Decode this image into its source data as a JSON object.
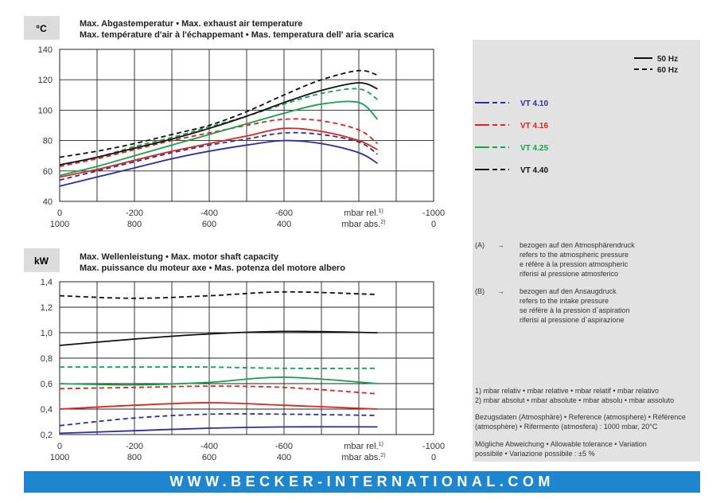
{
  "footer": {
    "url": "WWW.BECKER-INTERNATIONAL.COM"
  },
  "legend": {
    "freq_50": "50 Hz",
    "freq_60": "60 Hz",
    "models": [
      {
        "name": "VT 4.10",
        "color": "#2b2f9c"
      },
      {
        "name": "VT 4.16",
        "color": "#e0231c"
      },
      {
        "name": "VT 4.25",
        "color": "#12a34b"
      },
      {
        "name": "VT 4.40",
        "color": "#111111"
      }
    ]
  },
  "notes": {
    "A_label": "(A)",
    "A_arrow": "→",
    "A_lines": [
      "bezogen auf den Atmosphärendruck",
      "refers to the atmospheric pressure",
      "e réfère à la pression atmospheric",
      "riferisi al pressione atmosferico"
    ],
    "B_label": "(B)",
    "B_arrow": "→",
    "B_lines": [
      "bezogen auf den Ansaugdruck",
      "refers to the intake pressure",
      "se réfère à la pression d`aspiration",
      "riferisi al pressione d`aspirazione"
    ],
    "fn1": "1) mbar relativ • mbar relative • mbar relatif • mbar relativo",
    "fn2": "2) mbar absolut • mbar absolute • mbar absolu • mbar assoluto",
    "ref1": "Bezugsdaten (Atmosphäre) • Reference (atmosphere) • Référence",
    "ref2": "(atmosphère) • Rifermento (atmosfera) :  1000 mbar, 20°C",
    "tol1": "Mögliche Abweichung • Allowable tolerance • Variation",
    "tol2": "possibile • Variazione possibile :  ±5 %"
  },
  "chart_data": [
    {
      "type": "line",
      "unit": "°C",
      "title": [
        "Max. Abgastemperatur  •  Max. exhaust air temperature",
        "Max. température d'air à l'échappemant  •  Mas. temperatura dell' aria scarica"
      ],
      "xlabel_rel": "mbar rel.",
      "xlabel_rel_sup": "1)",
      "xlabel_abs": "mbar abs.",
      "xlabel_abs_sup": "2)",
      "xlim": [
        0,
        -1000
      ],
      "x_ticks_rel": [
        "0",
        "-200",
        "-400",
        "-600",
        "",
        "-1000"
      ],
      "x_ticks_abs": [
        "1000",
        "800",
        "600",
        "400",
        "",
        "0"
      ],
      "ylim": [
        40,
        140
      ],
      "y_ticks": [
        "40",
        "60",
        "80",
        "100",
        "120",
        "140"
      ],
      "grid": true,
      "series": [
        {
          "name": "VT 4.10",
          "color": "#2b2f9c",
          "dash": false,
          "x": [
            0,
            -100,
            -200,
            -300,
            -400,
            -500,
            -600,
            -700,
            -800,
            -850
          ],
          "y": [
            50,
            56,
            62,
            68,
            73,
            77,
            80,
            78,
            72,
            65
          ]
        },
        {
          "name": "VT 4.10",
          "color": "#2b2f9c",
          "dash": true,
          "x": [
            0,
            -100,
            -200,
            -300,
            -400,
            -500,
            -600,
            -700,
            -800,
            -850
          ],
          "y": [
            54,
            60,
            66,
            72,
            77,
            81,
            85,
            84,
            79,
            71
          ]
        },
        {
          "name": "VT 4.16",
          "color": "#e0231c",
          "dash": false,
          "x": [
            0,
            -100,
            -200,
            -300,
            -400,
            -500,
            -600,
            -700,
            -800,
            -850
          ],
          "y": [
            56,
            61,
            67,
            73,
            78,
            83,
            88,
            86,
            80,
            74
          ]
        },
        {
          "name": "VT 4.16",
          "color": "#e0231c",
          "dash": true,
          "x": [
            0,
            -100,
            -200,
            -300,
            -400,
            -500,
            -600,
            -700,
            -800,
            -850
          ],
          "y": [
            63,
            68,
            74,
            80,
            85,
            90,
            94,
            93,
            87,
            78
          ]
        },
        {
          "name": "VT 4.25",
          "color": "#12a34b",
          "dash": false,
          "x": [
            0,
            -100,
            -200,
            -300,
            -400,
            -500,
            -600,
            -700,
            -800,
            -850
          ],
          "y": [
            57,
            63,
            70,
            77,
            84,
            91,
            98,
            104,
            105,
            94
          ]
        },
        {
          "name": "VT 4.25",
          "color": "#12a34b",
          "dash": true,
          "x": [
            0,
            -100,
            -200,
            -300,
            -400,
            -500,
            -600,
            -700,
            -800,
            -850
          ],
          "y": [
            64,
            69,
            76,
            82,
            89,
            96,
            104,
            111,
            114,
            107
          ]
        },
        {
          "name": "VT 4.40",
          "color": "#111111",
          "dash": false,
          "x": [
            0,
            -100,
            -200,
            -300,
            -400,
            -500,
            -600,
            -700,
            -800,
            -850
          ],
          "y": [
            64,
            69,
            75,
            81,
            88,
            96,
            105,
            113,
            118,
            114
          ]
        },
        {
          "name": "VT 4.40",
          "color": "#111111",
          "dash": true,
          "x": [
            0,
            -100,
            -200,
            -300,
            -400,
            -500,
            -600,
            -700,
            -800,
            -850
          ],
          "y": [
            69,
            73,
            78,
            84,
            90,
            99,
            110,
            120,
            126,
            123
          ]
        }
      ]
    },
    {
      "type": "line",
      "unit": "kW",
      "title": [
        "Max. Wellenleistung  •  Max. motor shaft capacity",
        "Max. puissance du moteur axe  •  Mas. potenza del motore albero"
      ],
      "xlabel_rel": "mbar rel.",
      "xlabel_rel_sup": "1)",
      "xlabel_abs": "mbar abs.",
      "xlabel_abs_sup": "2)",
      "xlim": [
        0,
        -1000
      ],
      "x_ticks_rel": [
        "0",
        "-200",
        "-400",
        "-600",
        "",
        "-1000"
      ],
      "x_ticks_abs": [
        "1000",
        "800",
        "600",
        "400",
        "",
        "0"
      ],
      "ylim": [
        0.2,
        1.4
      ],
      "y_ticks": [
        "0,2",
        "0,4",
        "0,6",
        "0,8",
        "1,0",
        "1,2",
        "1,4"
      ],
      "grid": true,
      "series": [
        {
          "name": "VT 4.10",
          "color": "#2b2f9c",
          "dash": false,
          "x": [
            0,
            -200,
            -400,
            -600,
            -850
          ],
          "y": [
            0.21,
            0.23,
            0.25,
            0.26,
            0.26
          ]
        },
        {
          "name": "VT 4.10",
          "color": "#2b2f9c",
          "dash": true,
          "x": [
            0,
            -200,
            -400,
            -600,
            -850
          ],
          "y": [
            0.27,
            0.33,
            0.36,
            0.36,
            0.35
          ]
        },
        {
          "name": "VT 4.16",
          "color": "#e0231c",
          "dash": false,
          "x": [
            0,
            -200,
            -400,
            -600,
            -850
          ],
          "y": [
            0.4,
            0.43,
            0.45,
            0.43,
            0.4
          ]
        },
        {
          "name": "VT 4.16",
          "color": "#e0231c",
          "dash": true,
          "x": [
            0,
            -200,
            -400,
            -600,
            -850
          ],
          "y": [
            0.56,
            0.57,
            0.58,
            0.57,
            0.52
          ]
        },
        {
          "name": "VT 4.25",
          "color": "#12a34b",
          "dash": false,
          "x": [
            0,
            -200,
            -400,
            -600,
            -850
          ],
          "y": [
            0.6,
            0.59,
            0.61,
            0.65,
            0.6
          ]
        },
        {
          "name": "VT 4.25",
          "color": "#12a34b",
          "dash": true,
          "x": [
            0,
            -200,
            -400,
            -600,
            -850
          ],
          "y": [
            0.73,
            0.73,
            0.73,
            0.72,
            0.72
          ]
        },
        {
          "name": "VT 4.40",
          "color": "#111111",
          "dash": false,
          "x": [
            0,
            -200,
            -400,
            -600,
            -850
          ],
          "y": [
            0.9,
            0.95,
            0.99,
            1.01,
            1.0
          ]
        },
        {
          "name": "VT 4.40",
          "color": "#111111",
          "dash": true,
          "x": [
            0,
            -200,
            -400,
            -600,
            -850
          ],
          "y": [
            1.29,
            1.27,
            1.29,
            1.32,
            1.3
          ]
        }
      ]
    }
  ]
}
